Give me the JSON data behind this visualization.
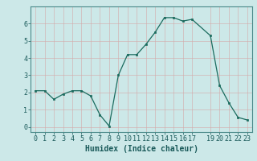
{
  "x": [
    0,
    1,
    2,
    3,
    4,
    5,
    6,
    7,
    8,
    9,
    10,
    11,
    12,
    13,
    14,
    15,
    16,
    17,
    19,
    20,
    21,
    22,
    23
  ],
  "y": [
    2.1,
    2.1,
    1.6,
    1.9,
    2.1,
    2.1,
    1.8,
    0.7,
    0.05,
    3.0,
    4.2,
    4.2,
    4.8,
    5.5,
    6.35,
    6.35,
    6.15,
    6.25,
    5.3,
    2.4,
    1.4,
    0.55,
    0.4
  ],
  "line_color": "#1a6b5e",
  "marker_color": "#1a6b5e",
  "bg_color": "#cce8e8",
  "grid_color_major": "#b8d4d4",
  "grid_color_minor": "#d8ecec",
  "xlabel": "Humidex (Indice chaleur)",
  "xlim": [
    -0.5,
    23.5
  ],
  "ylim": [
    -0.3,
    7.0
  ],
  "yticks": [
    0,
    1,
    2,
    3,
    4,
    5,
    6
  ],
  "xticks": [
    0,
    1,
    2,
    3,
    4,
    5,
    6,
    7,
    8,
    9,
    10,
    11,
    12,
    13,
    14,
    15,
    16,
    17,
    19,
    20,
    21,
    22,
    23
  ],
  "tick_fontsize": 6,
  "xlabel_fontsize": 7,
  "line_width": 0.9,
  "marker_size": 2.0
}
